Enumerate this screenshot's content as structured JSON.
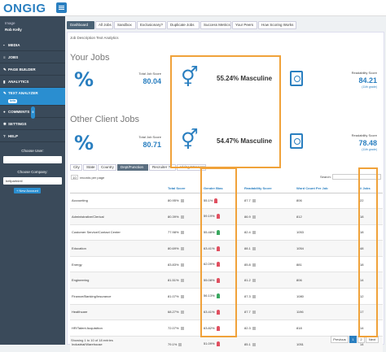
{
  "app": {
    "logo": "ONGIG"
  },
  "sidebar": {
    "profile_image_alt": "Image",
    "profile_name": "Rob Kelly",
    "items": [
      {
        "icon": "media-icon",
        "label": "MEDIA"
      },
      {
        "icon": "jobs-icon",
        "label": "JOBS"
      },
      {
        "icon": "page-builder-icon",
        "label": "PAGE BUILDER"
      },
      {
        "icon": "analytics-icon",
        "label": "ANALYTICS"
      },
      {
        "icon": "text-analyzer-icon",
        "label": "TEXT ANALYZER",
        "badge": "beta"
      },
      {
        "icon": "comments-icon",
        "label": "COMMENTS",
        "count": "0"
      },
      {
        "icon": "settings-icon",
        "label": "SETTINGS"
      },
      {
        "icon": "help-icon",
        "label": "HELP"
      }
    ],
    "choose_user_label": "Choose User:",
    "choose_company_label": "Choose Company:",
    "company_value": "bellpartnintl",
    "new_account_label": "+ New Account"
  },
  "tabs": [
    "Dashboard",
    "All Jobs",
    "Sandbox",
    "Exclusionary?",
    "Duplicate Jobs",
    "Success Metrics",
    "Your Peers",
    "How Scoring Works"
  ],
  "panel_title": "Job Description Text Analytics",
  "your_jobs": {
    "title": "Your Jobs",
    "score_label": "Total Job Score",
    "score": "80.04",
    "gender": "55.24% Masculine",
    "readability_label": "Readability Score",
    "readability": "84.21",
    "grade": "(11th grade)"
  },
  "other_jobs": {
    "title": "Other Client Jobs",
    "score_label": "Total Job Score",
    "score": "80.71",
    "gender": "54.47% Masculine",
    "readability_label": "Readability Score",
    "readability": "78.48",
    "grade": "(11th grade)"
  },
  "subtabs": [
    "City",
    "State",
    "Country",
    "Dept/Function",
    "Recruiter ?",
    "Hiring Manager"
  ],
  "records": {
    "value": "10",
    "label": "records per page"
  },
  "search_label": "Search:",
  "table": {
    "headers": [
      "",
      "Total Score",
      "Gender Bias",
      "Readability Score",
      "Word Count Per Job",
      "# Jobs"
    ],
    "rows": [
      {
        "dept": "Accounting",
        "score": "80.95%",
        "gender": "55.1%",
        "g": "m",
        "read": "87.7",
        "words": "806",
        "jobs": "22"
      },
      {
        "dept": "Administrative/Clerical",
        "score": "80.39%",
        "gender": "59.19%",
        "g": "m",
        "read": "86.9",
        "words": "812",
        "jobs": "18"
      },
      {
        "dept": "Customer Service/Contact Center",
        "score": "77.98%",
        "gender": "55.48%",
        "g": "f",
        "read": "82.4",
        "words": "1053",
        "jobs": "18"
      },
      {
        "dept": "Education",
        "score": "80.69%",
        "gender": "63.41%",
        "g": "m",
        "read": "88.1",
        "words": "1054",
        "jobs": "48"
      },
      {
        "dept": "Energy",
        "score": "83.83%",
        "gender": "62.09%",
        "g": "m",
        "read": "85.8",
        "words": "881",
        "jobs": "18"
      },
      {
        "dept": "Engineering",
        "score": "81.51%",
        "gender": "55.08%",
        "g": "m",
        "read": "81.2",
        "words": "806",
        "jobs": "14"
      },
      {
        "dept": "Finance/Banking/Insurance",
        "score": "81.07%",
        "gender": "56.13%",
        "g": "f",
        "read": "87.3",
        "words": "1080",
        "jobs": "12"
      },
      {
        "dept": "Healthcare",
        "score": "68.27%",
        "gender": "63.41%",
        "g": "m",
        "read": "87.7",
        "words": "1196",
        "jobs": "17"
      },
      {
        "dept": "HR/Talent Acquisition",
        "score": "72.07%",
        "gender": "63.82%",
        "g": "m",
        "read": "82.3",
        "words": "818",
        "jobs": "14"
      },
      {
        "dept": "Industrial/Warehouse",
        "score": "79.1%",
        "gender": "51.09%",
        "g": "m",
        "read": "85.1",
        "words": "1051",
        "jobs": "14"
      }
    ]
  },
  "footer": {
    "showing": "Showing 1 to 10 of 18 entries",
    "prev": "Previous",
    "page1": "1",
    "page2": "2",
    "next": "Next"
  },
  "colors": {
    "accent": "#2a7fc0",
    "highlight": "#f0a23a",
    "masculine": "#e05060",
    "feminine": "#3aa860"
  }
}
